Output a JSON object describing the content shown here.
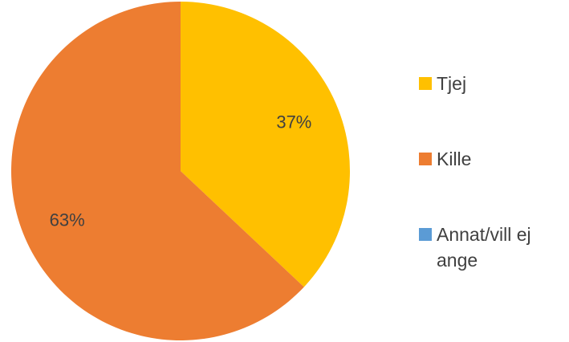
{
  "chart_data": {
    "type": "pie",
    "categories": [
      "Tjej",
      "Kille",
      "Annat/vill ej ange"
    ],
    "values": [
      37,
      63,
      0
    ],
    "data_labels": [
      "37%",
      "63%",
      ""
    ],
    "colors": [
      "#FFC000",
      "#ED7D31",
      "#5B9BD5"
    ],
    "title": "",
    "legend_position": "right",
    "start_angle_deg": 0,
    "direction": "clockwise"
  },
  "legend": {
    "items": [
      {
        "label": "Tjej",
        "color": "#FFC000"
      },
      {
        "label": "Kille",
        "color": "#ED7D31"
      },
      {
        "label": "Annat/vill ej ange",
        "color": "#5B9BD5"
      }
    ]
  }
}
